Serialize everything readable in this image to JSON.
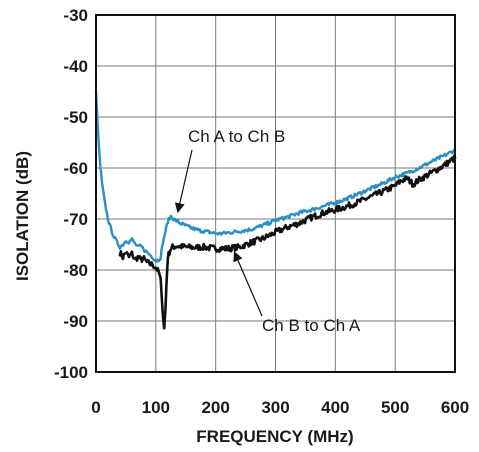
{
  "chart_data": {
    "type": "line",
    "title": "",
    "xlabel": "FREQUENCY (MHz)",
    "ylabel": "ISOLATION (dB)",
    "xlim": [
      0,
      600
    ],
    "ylim": [
      -100,
      -30
    ],
    "xticks": [
      0,
      100,
      200,
      300,
      400,
      500,
      600
    ],
    "yticks": [
      -30,
      -40,
      -50,
      -60,
      -70,
      -80,
      -90,
      -100
    ],
    "grid": true,
    "series": [
      {
        "name": "Ch A to Ch B",
        "color": "#2b8fc6",
        "x": [
          0,
          3,
          6,
          10,
          15,
          20,
          25,
          30,
          35,
          40,
          45,
          50,
          55,
          60,
          65,
          70,
          75,
          80,
          85,
          90,
          95,
          100,
          105,
          108,
          112,
          116,
          120,
          125,
          130,
          140,
          150,
          160,
          175,
          190,
          205,
          220,
          240,
          260,
          280,
          300,
          320,
          340,
          360,
          380,
          400,
          420,
          440,
          460,
          480,
          500,
          520,
          540,
          560,
          580,
          600
        ],
        "y": [
          -45,
          -52,
          -58,
          -63,
          -67,
          -70,
          -72,
          -73.5,
          -74.5,
          -75.5,
          -75,
          -74.2,
          -74.5,
          -74,
          -74.8,
          -75.5,
          -75.3,
          -76,
          -76.5,
          -77,
          -77.5,
          -78.2,
          -78,
          -77.5,
          -74.5,
          -72.5,
          -70.5,
          -69.5,
          -70,
          -70.8,
          -71.3,
          -71.8,
          -72.3,
          -72.6,
          -72.9,
          -72.7,
          -72.4,
          -72,
          -71.2,
          -70.3,
          -69.6,
          -68.8,
          -68.2,
          -67.5,
          -66.8,
          -66,
          -65,
          -64,
          -63,
          -61.8,
          -61,
          -60,
          -58.8,
          -57.7,
          -56.5
        ]
      },
      {
        "name": "Ch B to Ch A",
        "color": "#111111",
        "x": [
          40,
          45,
          50,
          55,
          60,
          65,
          70,
          75,
          80,
          85,
          90,
          95,
          100,
          105,
          108,
          110,
          112,
          114,
          116,
          118,
          120,
          124,
          128,
          135,
          150,
          165,
          180,
          200,
          220,
          240,
          260,
          280,
          300,
          320,
          340,
          360,
          380,
          400,
          420,
          440,
          460,
          480,
          500,
          510,
          520,
          530,
          540,
          560,
          580,
          600
        ],
        "y": [
          -76.5,
          -77.5,
          -76.5,
          -77.5,
          -76.8,
          -78,
          -77.5,
          -78,
          -77.8,
          -78.5,
          -78.8,
          -79,
          -79.5,
          -80.5,
          -82,
          -85,
          -89,
          -91.5,
          -88,
          -82,
          -77.5,
          -76,
          -75.5,
          -75.3,
          -75.5,
          -75.6,
          -75.5,
          -75.8,
          -75.8,
          -75.5,
          -74.6,
          -73.8,
          -72.6,
          -71.6,
          -70.8,
          -69.7,
          -68.8,
          -68.2,
          -67.5,
          -66.6,
          -65.6,
          -64.6,
          -63.5,
          -62.5,
          -62,
          -63.2,
          -62.3,
          -61,
          -59.6,
          -58
        ]
      }
    ],
    "annotations": [
      {
        "text": "Ch A to Ch B",
        "series": "Ch A to Ch B",
        "point_x": 135,
        "point_y": -69.5
      },
      {
        "text": "Ch B to Ch A",
        "series": "Ch B to Ch A",
        "point_x": 228,
        "point_y": -75.6
      }
    ]
  }
}
